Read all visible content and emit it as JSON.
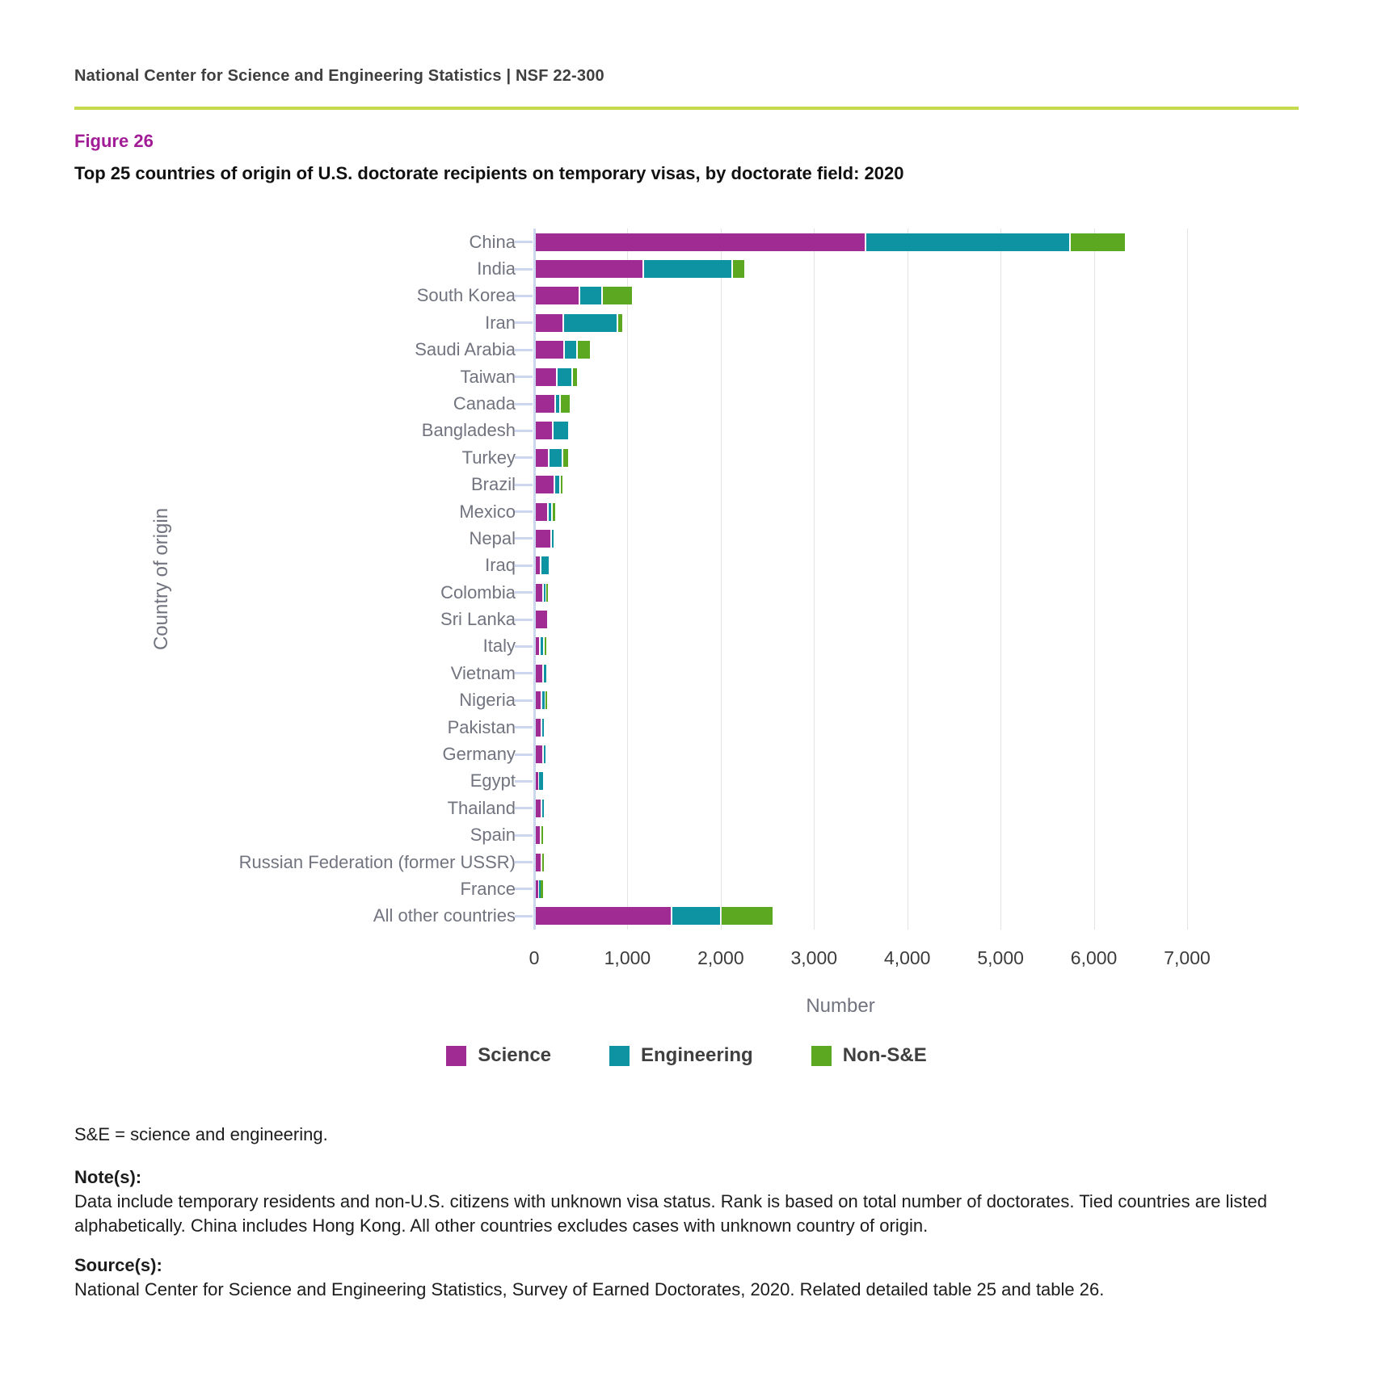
{
  "header": {
    "text": "National Center for Science and Engineering Statistics  |  NSF 22-300"
  },
  "figure": {
    "label": "Figure 26",
    "title": "Top 25 countries of origin of U.S. doctorate recipients on temporary visas, by doctorate field: 2020"
  },
  "chart_data": {
    "type": "bar",
    "orientation": "horizontal",
    "stacked": true,
    "title": "Top 25 countries of origin of U.S. doctorate recipients on temporary visas, by doctorate field: 2020",
    "xlabel": "Number",
    "ylabel": "Country of origin",
    "xlim": [
      0,
      7000
    ],
    "xticks": [
      "0",
      "1,000",
      "2,000",
      "3,000",
      "4,000",
      "5,000",
      "6,000",
      "7,000"
    ],
    "grid": true,
    "legend_position": "bottom",
    "categories": [
      "China",
      "India",
      "South Korea",
      "Iran",
      "Saudi Arabia",
      "Taiwan",
      "Canada",
      "Bangladesh",
      "Turkey",
      "Brazil",
      "Mexico",
      "Nepal",
      "Iraq",
      "Colombia",
      "Sri Lanka",
      "Italy",
      "Vietnam",
      "Nigeria",
      "Pakistan",
      "Germany",
      "Egypt",
      "Thailand",
      "Spain",
      "Russian Federation (former USSR)",
      "France",
      "All other countries"
    ],
    "series": [
      {
        "name": "Science",
        "color": "#a02b93",
        "values": [
          3540,
          1160,
          475,
          300,
          310,
          235,
          220,
          190,
          150,
          210,
          140,
          170,
          60,
          85,
          135,
          55,
          90,
          70,
          65,
          85,
          35,
          65,
          60,
          65,
          35,
          1460
        ]
      },
      {
        "name": "Engineering",
        "color": "#0e93a2",
        "values": [
          2195,
          955,
          240,
          585,
          140,
          160,
          45,
          170,
          145,
          55,
          45,
          20,
          95,
          25,
          0,
          40,
          30,
          30,
          40,
          10,
          60,
          20,
          0,
          0,
          20,
          535
        ]
      },
      {
        "name": "Non-S&E",
        "color": "#5ca820",
        "values": [
          600,
          135,
          335,
          60,
          145,
          60,
          115,
          0,
          65,
          30,
          35,
          0,
          0,
          40,
          0,
          25,
          0,
          15,
          0,
          0,
          0,
          0,
          25,
          15,
          25,
          565
        ]
      }
    ]
  },
  "footer": {
    "abbrev": "S&E = science and engineering.",
    "notes_label": "Note(s):",
    "notes_text": "Data include temporary residents and non-U.S. citizens with unknown visa status. Rank is based on total number of doctorates. Tied countries are listed alphabetically. China includes Hong Kong. All other countries excludes cases with unknown country of origin.",
    "source_label": "Source(s):",
    "source_text": "National Center for Science and Engineering Statistics, Survey of Earned Doctorates, 2020. Related detailed table 25 and table 26."
  },
  "colors": {
    "science": "#a02b93",
    "engineering": "#0e93a2",
    "non_se": "#5ca820",
    "figure_label": "#a21c96",
    "title_rule": "#c6da4d",
    "axis": "#ccd6ee",
    "gridline": "#e3e3e3",
    "country_label": "#71747f"
  }
}
